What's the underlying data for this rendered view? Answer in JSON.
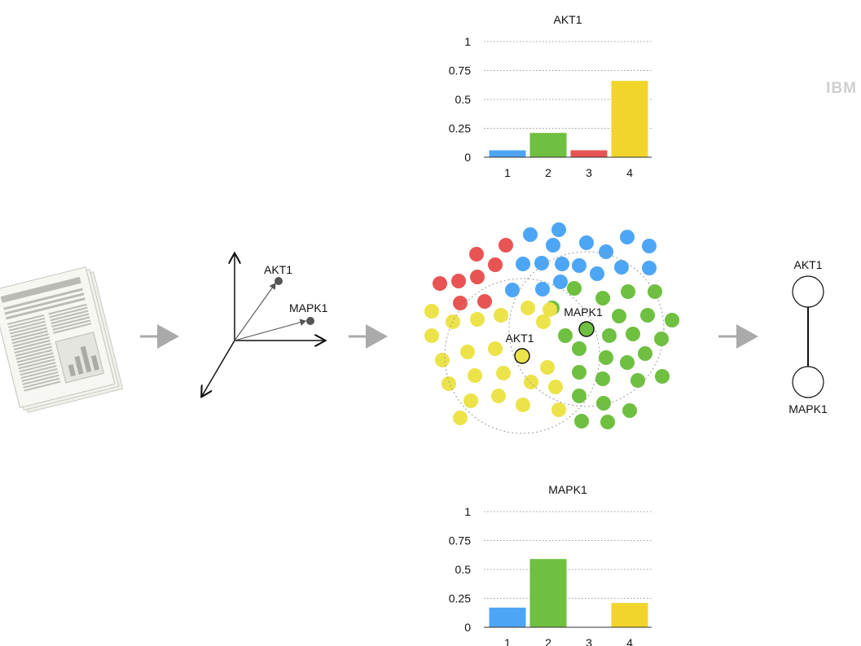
{
  "colors": {
    "cluster1": "#4da6f5",
    "cluster2": "#6fbf40",
    "cluster3": "#e85454",
    "cluster4": "#f2d52a",
    "dot_yellow": "#ece34a",
    "arrow": "#aaaaaa",
    "vector_point": "#555555",
    "logo": "#cccccc"
  },
  "logo": {
    "text": "IBM"
  },
  "vector_space": {
    "labels": [
      "AKT1",
      "MAPK1"
    ]
  },
  "clustering": {
    "highlight_labels": [
      "AKT1",
      "MAPK1"
    ]
  },
  "network": {
    "nodes": [
      "AKT1",
      "MAPK1"
    ],
    "edges": [
      [
        "AKT1",
        "MAPK1"
      ]
    ]
  },
  "chart_data": [
    {
      "type": "bar",
      "title": "AKT1",
      "categories": [
        "1",
        "2",
        "3",
        "4"
      ],
      "values": [
        0.06,
        0.21,
        0.06,
        0.66
      ],
      "colors": [
        "#4da6f5",
        "#6fbf40",
        "#e85454",
        "#f2d52a"
      ],
      "yticks": [
        "0",
        "0.25",
        "0.5",
        "0.75",
        "1"
      ],
      "ylim": [
        0,
        1
      ],
      "grid": true,
      "xlabel": "",
      "ylabel": ""
    },
    {
      "type": "bar",
      "title": "MAPK1",
      "categories": [
        "1",
        "2",
        "3",
        "4"
      ],
      "values": [
        0.17,
        0.59,
        0.0,
        0.21
      ],
      "colors": [
        "#4da6f5",
        "#6fbf40",
        "#e85454",
        "#f2d52a"
      ],
      "yticks": [
        "0",
        "0.25",
        "0.5",
        "0.75",
        "1"
      ],
      "ylim": [
        0,
        1
      ],
      "grid": true,
      "xlabel": "",
      "ylabel": ""
    }
  ]
}
